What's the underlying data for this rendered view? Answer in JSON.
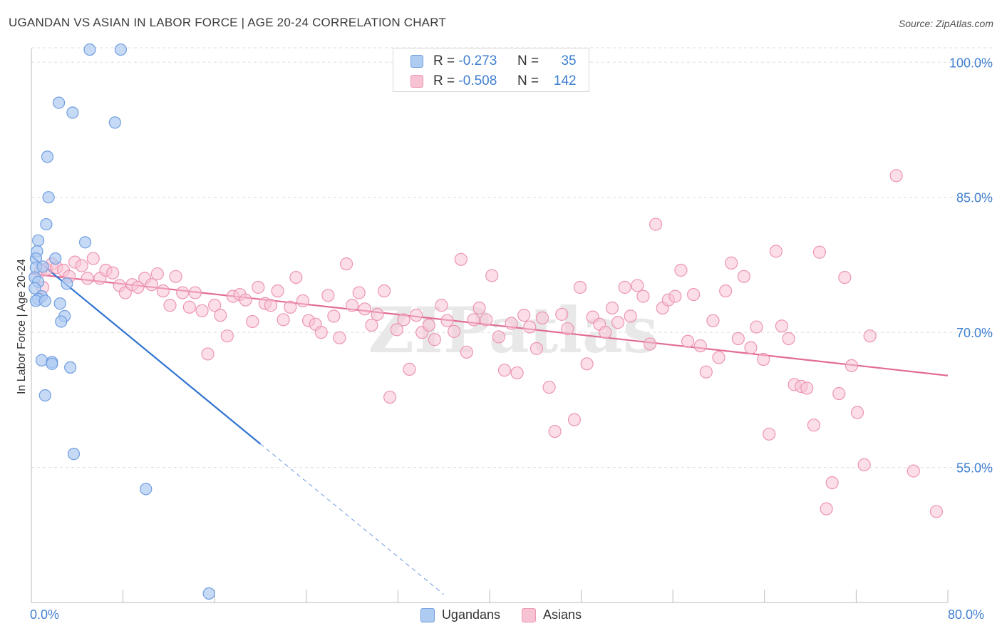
{
  "chart_data": {
    "type": "scatter",
    "title": "UGANDAN VS ASIAN IN LABOR FORCE | AGE 20-24 CORRELATION CHART",
    "source": "Source: ZipAtlas.com",
    "xlabel": "",
    "ylabel": "In Labor Force | Age 20-24",
    "xlim": [
      0,
      80
    ],
    "ylim": [
      40,
      102
    ],
    "x_tick_labels": [
      "0.0%",
      "80.0%"
    ],
    "y_ticks": [
      100,
      85,
      70,
      55
    ],
    "y_tick_labels": [
      "100.0%",
      "85.0%",
      "70.0%",
      "55.0%"
    ],
    "watermark": "ZIPatlas",
    "colors": {
      "ugandans_fill": "#aecbf2",
      "ugandans_stroke": "#6f9ee0",
      "ugandans_line": "#2f73d0",
      "asians_fill": "#f7c3d3",
      "asians_stroke": "#ec95b3",
      "asians_line": "#e26b97",
      "axis_label": "#3f7fd0",
      "grid": "#dddddd"
    },
    "legend_top": [
      {
        "r_label": "R =",
        "r_value": "-0.273",
        "n_label": "N =",
        "n_value": "35"
      },
      {
        "r_label": "R =",
        "r_value": "-0.508",
        "n_label": "N =",
        "n_value": "142"
      }
    ],
    "series": [
      {
        "name": "Ugandans",
        "trend": {
          "x0": 0,
          "y0": 78.5,
          "x1": 20,
          "y1": 57.6,
          "dash_to_x": 36,
          "dash_to_y": 40.9
        },
        "points": [
          [
            5.1,
            101.4
          ],
          [
            7.8,
            101.4
          ],
          [
            2.4,
            95.5
          ],
          [
            3.6,
            94.4
          ],
          [
            7.3,
            93.3
          ],
          [
            1.4,
            89.5
          ],
          [
            1.5,
            85.0
          ],
          [
            1.3,
            82.0
          ],
          [
            0.6,
            80.2
          ],
          [
            4.7,
            80.0
          ],
          [
            0.5,
            79.0
          ],
          [
            0.4,
            78.2
          ],
          [
            2.1,
            78.2
          ],
          [
            0.4,
            77.2
          ],
          [
            1.0,
            77.3
          ],
          [
            0.3,
            76.1
          ],
          [
            0.6,
            75.6
          ],
          [
            3.1,
            75.4
          ],
          [
            0.3,
            74.9
          ],
          [
            0.9,
            74.0
          ],
          [
            0.6,
            73.7
          ],
          [
            0.4,
            73.5
          ],
          [
            1.2,
            73.5
          ],
          [
            2.5,
            73.2
          ],
          [
            2.9,
            71.8
          ],
          [
            2.6,
            71.2
          ],
          [
            0.9,
            66.9
          ],
          [
            1.8,
            66.7
          ],
          [
            1.8,
            66.5
          ],
          [
            3.4,
            66.1
          ],
          [
            1.2,
            63.0
          ],
          [
            3.7,
            56.5
          ],
          [
            10.0,
            52.6
          ],
          [
            15.5,
            41.0
          ]
        ]
      },
      {
        "name": "Asians",
        "trend": {
          "x0": 0,
          "y0": 76.5,
          "x1": 80,
          "y1": 65.2
        },
        "points": [
          [
            0.8,
            76.8
          ],
          [
            1.3,
            77.0
          ],
          [
            1.8,
            77.6
          ],
          [
            2.2,
            77.2
          ],
          [
            2.8,
            76.9
          ],
          [
            3.3,
            76.2
          ],
          [
            3.8,
            77.8
          ],
          [
            4.4,
            77.4
          ],
          [
            4.9,
            76.0
          ],
          [
            5.4,
            78.2
          ],
          [
            6.0,
            76.0
          ],
          [
            6.5,
            76.9
          ],
          [
            7.1,
            76.6
          ],
          [
            7.7,
            75.2
          ],
          [
            8.2,
            74.4
          ],
          [
            8.8,
            75.3
          ],
          [
            9.3,
            75.0
          ],
          [
            9.9,
            76.0
          ],
          [
            10.5,
            75.3
          ],
          [
            11.0,
            76.5
          ],
          [
            11.5,
            74.6
          ],
          [
            12.1,
            73.0
          ],
          [
            12.6,
            76.2
          ],
          [
            13.2,
            74.4
          ],
          [
            13.8,
            72.8
          ],
          [
            14.3,
            74.4
          ],
          [
            14.9,
            72.4
          ],
          [
            15.4,
            67.6
          ],
          [
            16.0,
            73.0
          ],
          [
            16.5,
            71.9
          ],
          [
            17.1,
            69.6
          ],
          [
            17.6,
            74.0
          ],
          [
            18.2,
            74.2
          ],
          [
            18.7,
            73.6
          ],
          [
            19.3,
            71.2
          ],
          [
            19.8,
            75.0
          ],
          [
            20.4,
            73.2
          ],
          [
            20.9,
            73.0
          ],
          [
            21.5,
            74.6
          ],
          [
            22.0,
            71.4
          ],
          [
            22.6,
            72.8
          ],
          [
            23.1,
            76.1
          ],
          [
            23.7,
            73.5
          ],
          [
            24.2,
            71.3
          ],
          [
            24.8,
            70.9
          ],
          [
            25.3,
            70.0
          ],
          [
            25.9,
            74.1
          ],
          [
            26.4,
            71.8
          ],
          [
            26.9,
            69.4
          ],
          [
            27.5,
            77.6
          ],
          [
            28.0,
            73.0
          ],
          [
            28.6,
            74.4
          ],
          [
            29.1,
            72.6
          ],
          [
            29.7,
            70.8
          ],
          [
            30.2,
            72.0
          ],
          [
            30.8,
            74.6
          ],
          [
            31.3,
            62.8
          ],
          [
            31.9,
            70.3
          ],
          [
            32.5,
            71.4
          ],
          [
            33.0,
            65.9
          ],
          [
            33.6,
            71.9
          ],
          [
            34.1,
            70.0
          ],
          [
            34.7,
            70.8
          ],
          [
            35.2,
            69.2
          ],
          [
            35.8,
            73.0
          ],
          [
            36.3,
            71.3
          ],
          [
            36.9,
            70.1
          ],
          [
            37.5,
            78.1
          ],
          [
            38.0,
            67.8
          ],
          [
            38.6,
            71.4
          ],
          [
            39.1,
            72.7
          ],
          [
            39.7,
            71.4
          ],
          [
            40.2,
            76.3
          ],
          [
            40.8,
            69.5
          ],
          [
            41.3,
            65.8
          ],
          [
            41.9,
            71.0
          ],
          [
            42.4,
            65.5
          ],
          [
            43.0,
            71.9
          ],
          [
            43.5,
            70.6
          ],
          [
            44.1,
            68.2
          ],
          [
            44.6,
            71.6
          ],
          [
            45.2,
            63.9
          ],
          [
            45.7,
            59.0
          ],
          [
            46.3,
            72.0
          ],
          [
            46.8,
            70.4
          ],
          [
            47.4,
            60.3
          ],
          [
            47.9,
            75.0
          ],
          [
            48.5,
            66.5
          ],
          [
            49.0,
            71.7
          ],
          [
            49.6,
            70.9
          ],
          [
            50.1,
            70.0
          ],
          [
            50.7,
            72.7
          ],
          [
            51.2,
            71.1
          ],
          [
            51.8,
            75.0
          ],
          [
            52.3,
            71.8
          ],
          [
            52.9,
            75.2
          ],
          [
            53.4,
            74.0
          ],
          [
            54.0,
            68.7
          ],
          [
            54.5,
            82.0
          ],
          [
            55.1,
            72.7
          ],
          [
            55.6,
            73.6
          ],
          [
            56.2,
            74.0
          ],
          [
            56.7,
            76.9
          ],
          [
            57.3,
            69.0
          ],
          [
            57.8,
            74.2
          ],
          [
            58.4,
            68.5
          ],
          [
            58.9,
            65.6
          ],
          [
            59.5,
            71.3
          ],
          [
            60.0,
            67.2
          ],
          [
            60.6,
            74.6
          ],
          [
            61.1,
            77.7
          ],
          [
            61.7,
            69.3
          ],
          [
            62.2,
            76.2
          ],
          [
            62.8,
            68.3
          ],
          [
            63.3,
            70.6
          ],
          [
            63.9,
            67.0
          ],
          [
            64.4,
            58.7
          ],
          [
            65.0,
            79.0
          ],
          [
            65.5,
            70.7
          ],
          [
            66.1,
            69.3
          ],
          [
            66.6,
            64.2
          ],
          [
            67.2,
            64.0
          ],
          [
            67.7,
            63.8
          ],
          [
            68.3,
            59.7
          ],
          [
            68.8,
            78.9
          ],
          [
            69.4,
            50.4
          ],
          [
            69.9,
            53.3
          ],
          [
            70.5,
            63.2
          ],
          [
            71.0,
            76.1
          ],
          [
            71.6,
            66.3
          ],
          [
            72.1,
            61.1
          ],
          [
            72.7,
            55.3
          ],
          [
            73.2,
            69.6
          ],
          [
            75.5,
            87.4
          ],
          [
            77.0,
            54.6
          ],
          [
            79.0,
            50.1
          ],
          [
            1.0,
            75.0
          ]
        ]
      }
    ]
  },
  "legend_bottom": [
    "Ugandans",
    "Asians"
  ]
}
